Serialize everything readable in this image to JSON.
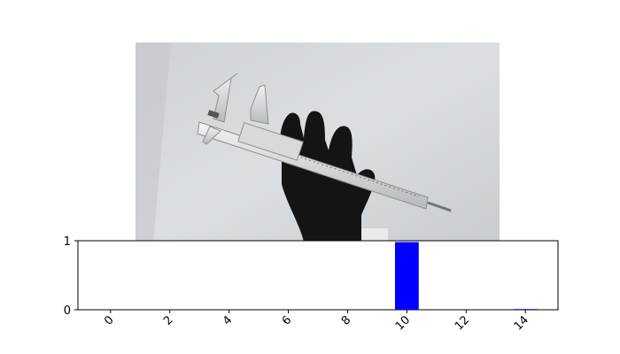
{
  "chart_data": {
    "type": "bar",
    "x": [
      0,
      1,
      2,
      3,
      4,
      5,
      6,
      7,
      8,
      9,
      10,
      11,
      12,
      13,
      14
    ],
    "values": [
      0,
      0,
      0,
      0,
      0,
      0,
      0,
      0,
      0,
      0,
      0.98,
      0,
      0,
      0,
      0.01
    ],
    "xticks": [
      "0",
      "2",
      "4",
      "6",
      "8",
      "10",
      "12",
      "14"
    ],
    "yticks": [
      "0",
      "1"
    ],
    "xlim": [
      -1.1,
      15.1
    ],
    "ylim": [
      0,
      1
    ],
    "bar_color": "#0000ff",
    "grid": false,
    "title": "",
    "xlabel": "",
    "ylabel": ""
  }
}
